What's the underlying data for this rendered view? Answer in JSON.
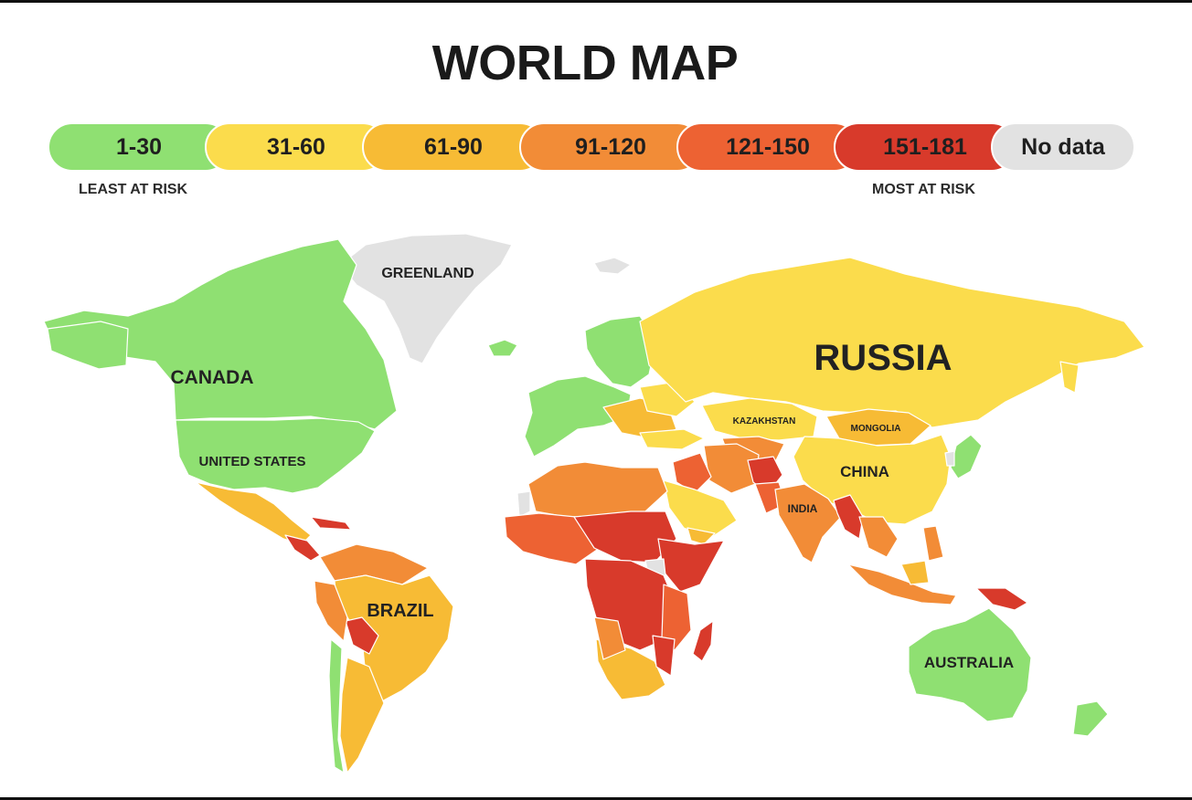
{
  "title": "WORLD MAP",
  "legend": {
    "items": [
      {
        "label": "1-30",
        "color": "#8fe072"
      },
      {
        "label": "31-60",
        "color": "#fbdc4c"
      },
      {
        "label": "61-90",
        "color": "#f7bb35"
      },
      {
        "label": "91-120",
        "color": "#f28c37"
      },
      {
        "label": "121-150",
        "color": "#ed6233"
      },
      {
        "label": "151-181",
        "color": "#d83a2b"
      },
      {
        "label": "No data",
        "color": "#e2e2e2"
      }
    ],
    "low_note": "LEAST AT RISK",
    "high_note": "MOST AT RISK"
  },
  "map": {
    "labels": {
      "greenland": "GREENLAND",
      "canada": "CANADA",
      "united_states": "UNITED STATES",
      "russia": "RUSSIA",
      "kazakhstan": "KAZAKHSTAN",
      "mongolia": "MONGOLIA",
      "china": "CHINA",
      "india": "INDIA",
      "brazil": "BRAZIL",
      "australia": "AUSTRALIA"
    }
  }
}
